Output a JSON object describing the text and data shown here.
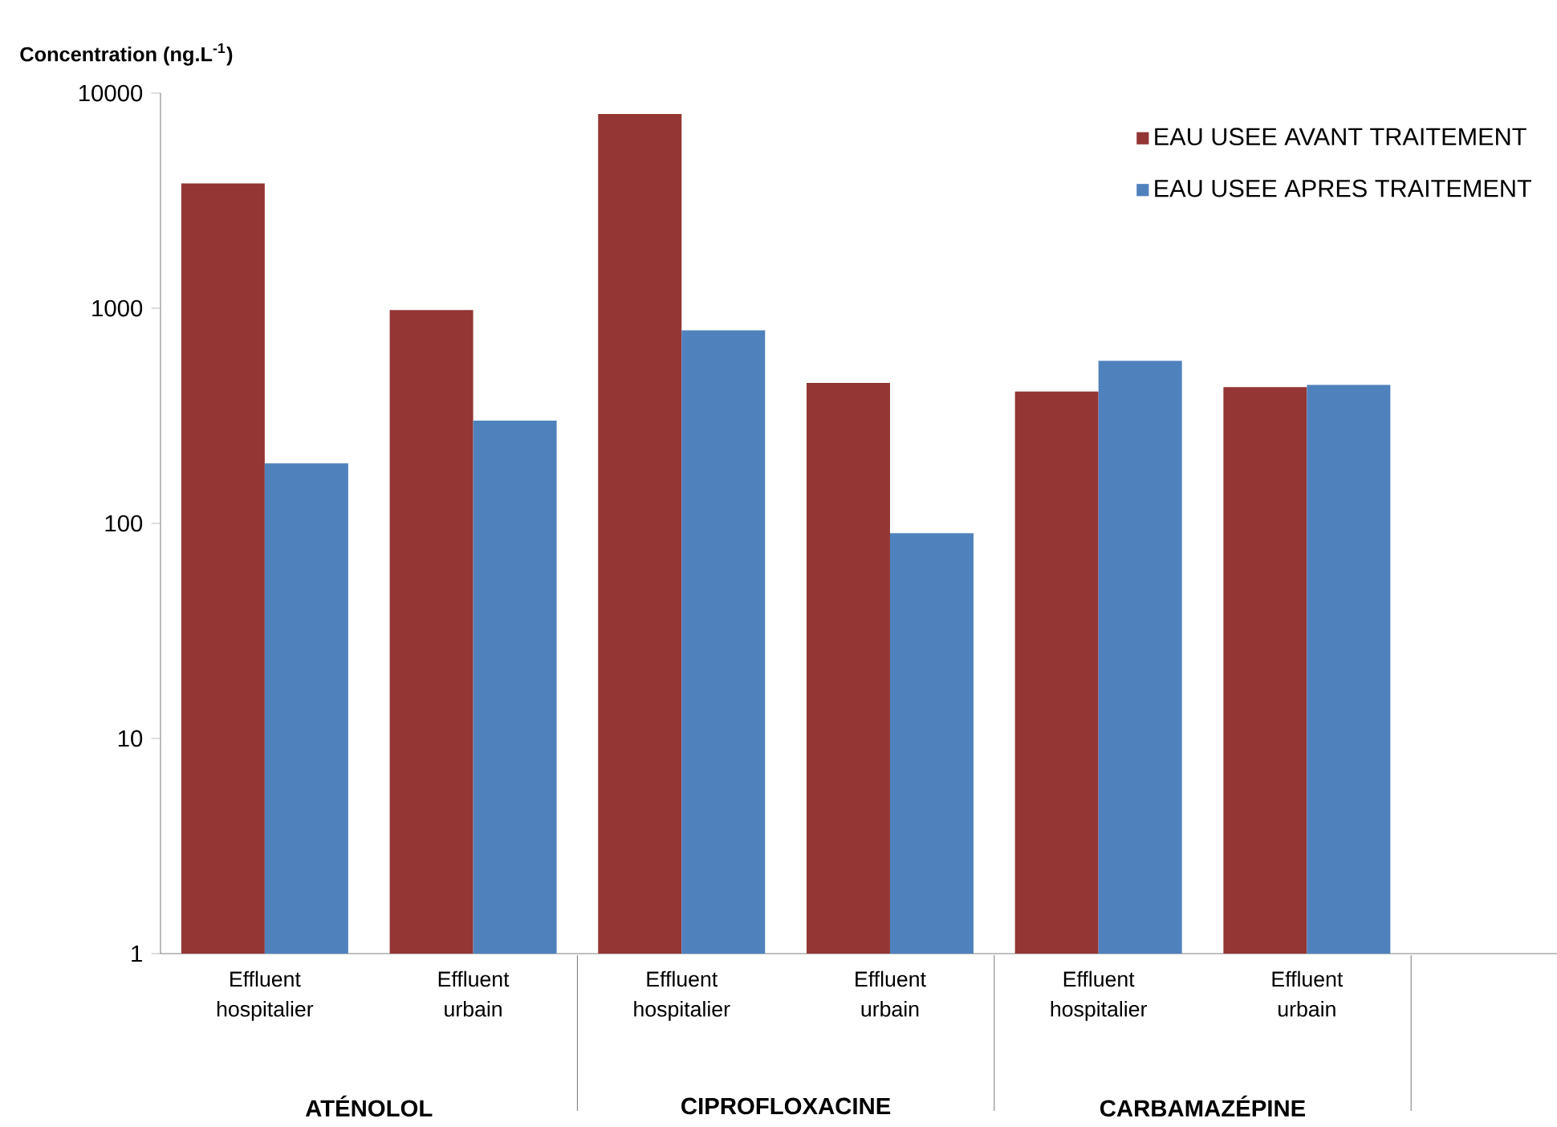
{
  "chart_data": {
    "type": "bar",
    "ylabel": "Concentration (ng.L$^{-1}$)",
    "categories": [
      "Effluent hospitalier",
      "Effluent urbain",
      "Effluent hospitalier",
      "Effluent urbain",
      "Effluent hospitalier",
      "Effluent urbain"
    ],
    "annotations": [
      "ATÉNOLOL",
      "CIPROFLOXACINE",
      "CARBAMAZÉPINE"
    ],
    "series": [
      {
        "name": "EAU USEE AVANT TRAITEMENT",
        "color": "#943634",
        "values": [
          3800,
          980,
          8000,
          450,
          410,
          430
        ]
      },
      {
        "name": "EAU USEE APRES TRAITEMENT",
        "color": "#4f81bd",
        "values": [
          190,
          300,
          790,
          90,
          570,
          440
        ]
      }
    ],
    "log": true,
    "ylim": [
      1,
      10000
    ],
    "yticks": [
      1,
      10,
      100,
      1000,
      10000
    ],
    "legend": "top right"
  }
}
